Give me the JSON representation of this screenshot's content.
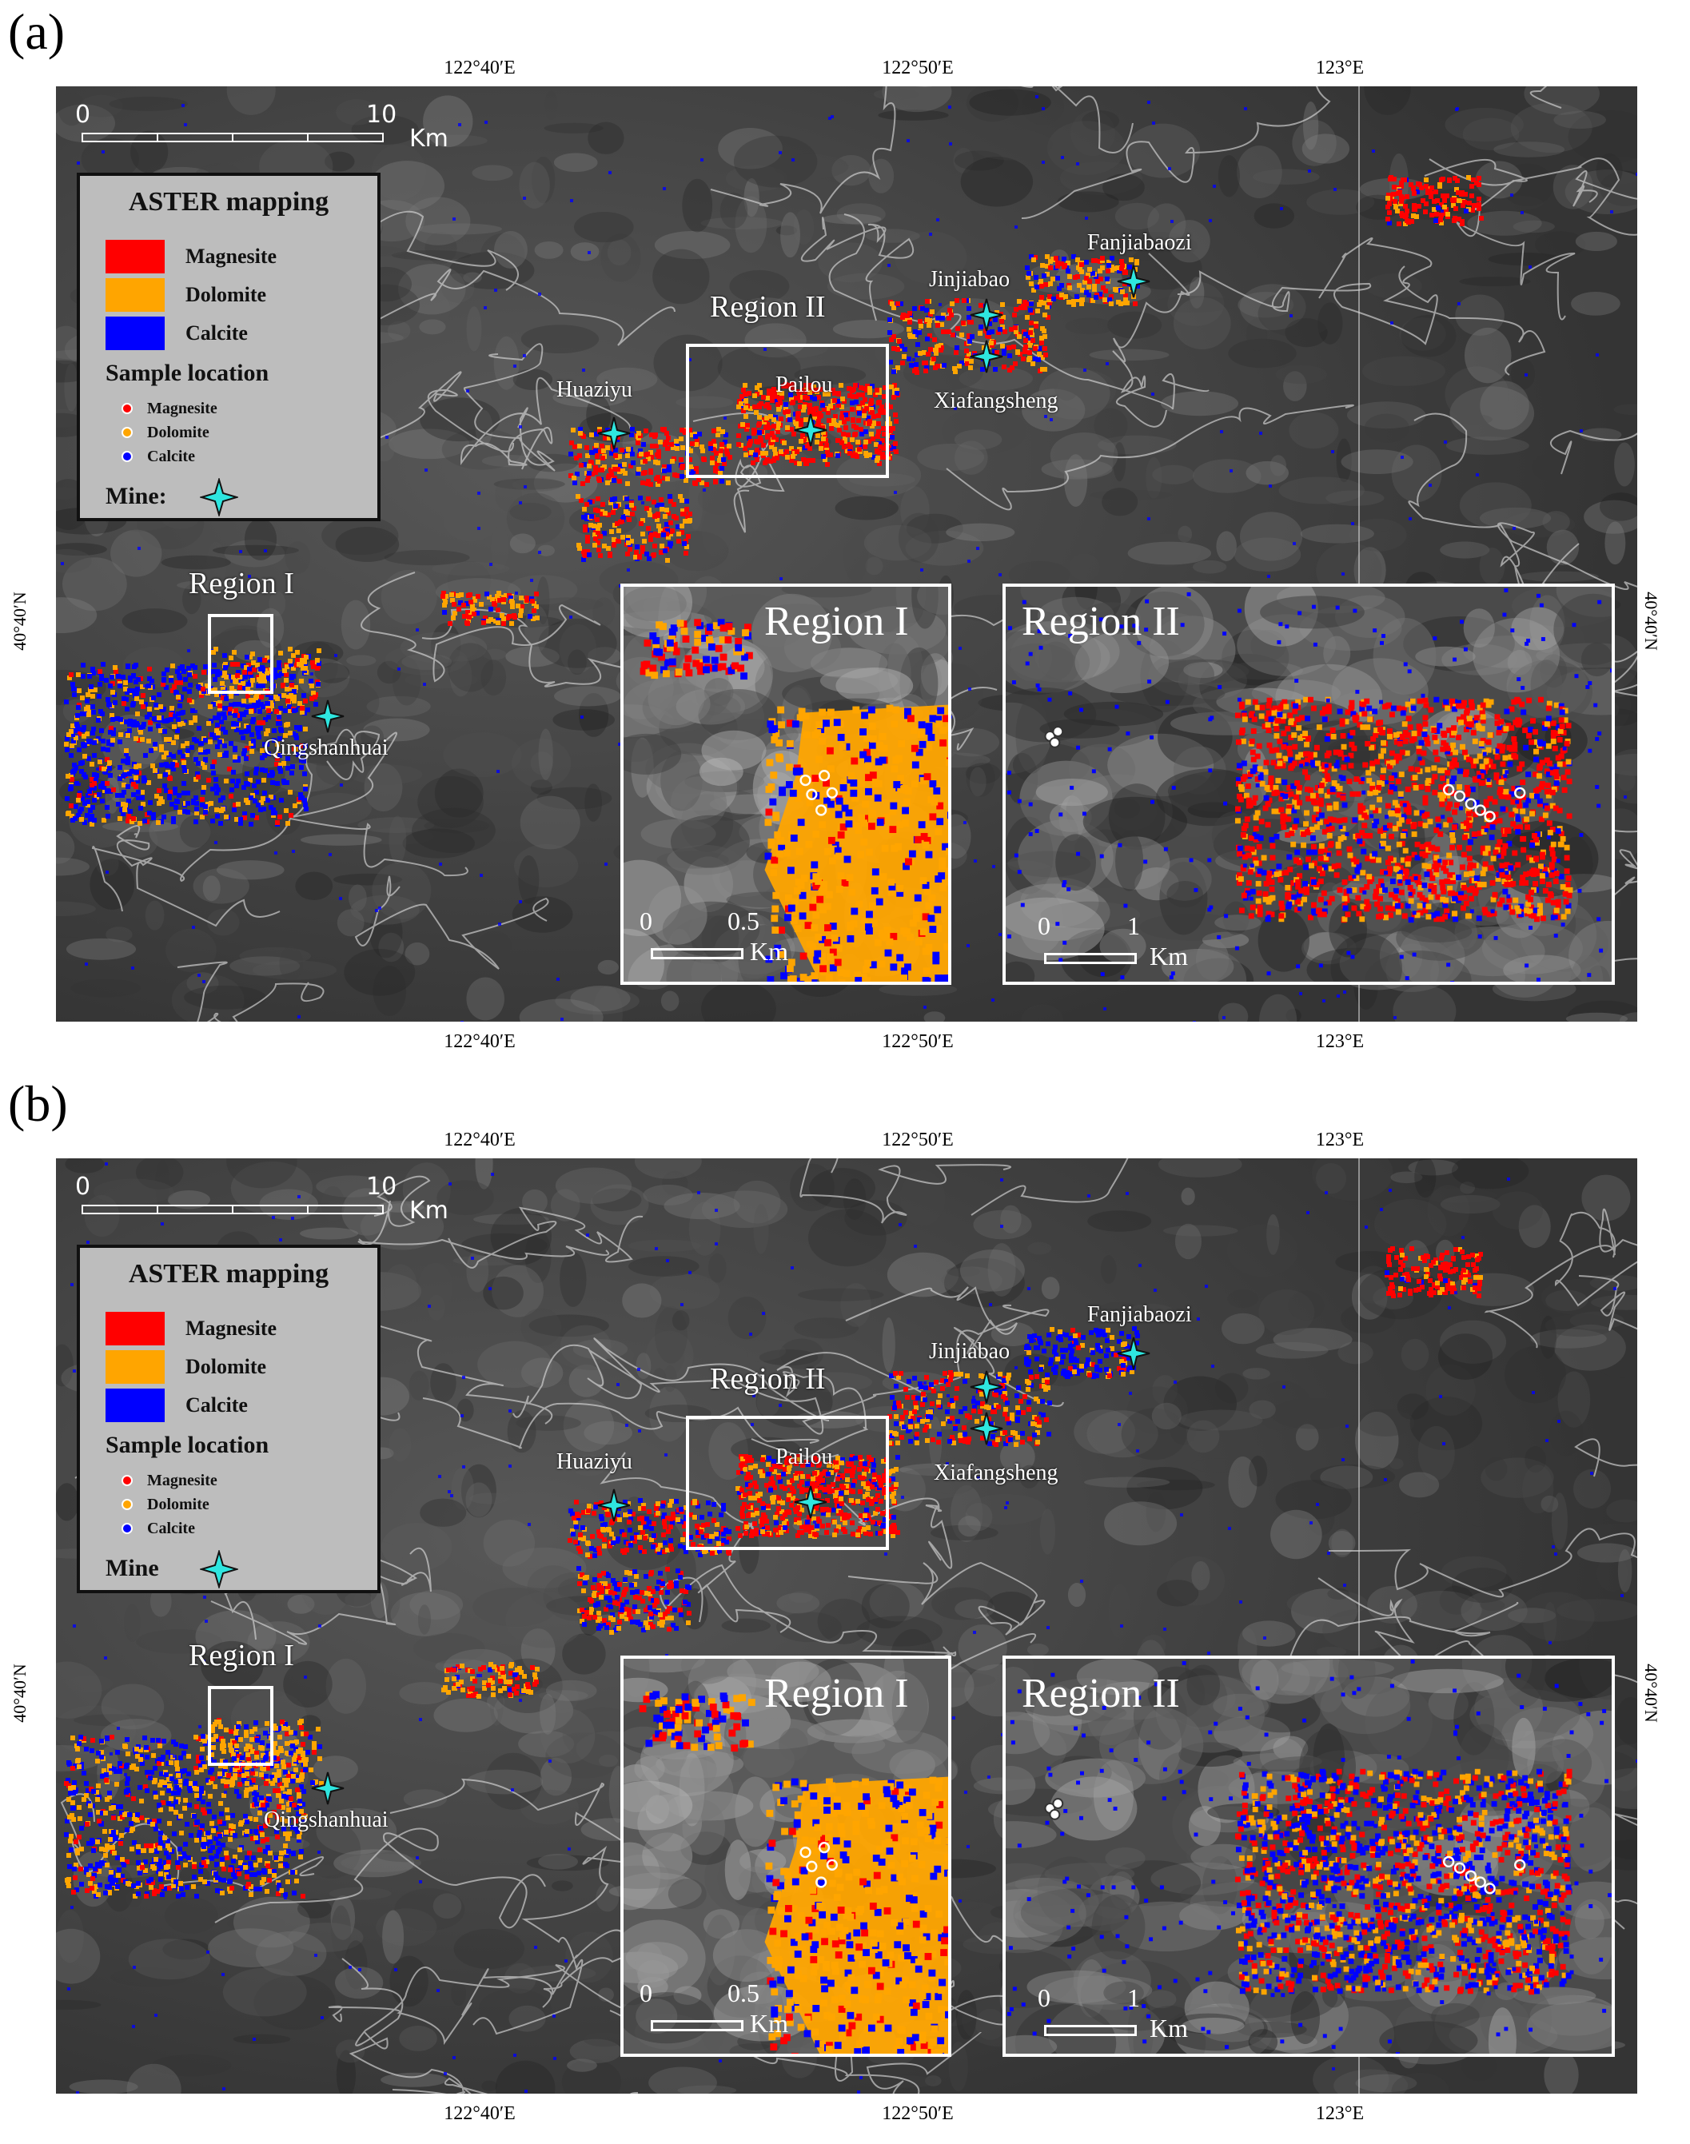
{
  "panels": [
    {
      "label": "(a)",
      "lon_ticks": [
        "122°40′E",
        "122°50′E",
        "123°E"
      ],
      "lat_tick": "40°40′N",
      "scalebar": {
        "start": "0",
        "end": "10",
        "unit": "Km"
      },
      "legend": {
        "title": "ASTER mapping",
        "classes": [
          {
            "name": "Magnesite",
            "color": "#ff0000"
          },
          {
            "name": "Dolomite",
            "color": "#ffa500"
          },
          {
            "name": "Calcite",
            "color": "#0000ff"
          }
        ],
        "sample_title": "Sample location",
        "samples": [
          {
            "name": "Magnesite",
            "color": "#ff0000"
          },
          {
            "name": "Dolomite",
            "color": "#ffa500"
          },
          {
            "name": "Calcite",
            "color": "#0000ff"
          }
        ],
        "mine_label": "Mine:"
      },
      "places": {
        "fanjiabaozi": "Fanjiabaozi",
        "jinjiabao": "Jinjiabao",
        "xiafangsheng": "Xiafangsheng",
        "huaziyu": "Huaziyu",
        "pailou": "Pailou",
        "qingshanhuai": "Qingshanhuai"
      },
      "regions": {
        "region1": "Region I",
        "region2": "Region II"
      },
      "inset1": {
        "title": "Region I",
        "scale_start": "0",
        "scale_end": "0.5",
        "unit": "Km"
      },
      "inset2": {
        "title": "Region II",
        "scale_start": "0",
        "scale_end": "1",
        "unit": "Km"
      }
    },
    {
      "label": "(b)",
      "lon_ticks": [
        "122°40′E",
        "122°50′E",
        "123°E"
      ],
      "lat_tick": "40°40′N",
      "scalebar": {
        "start": "0",
        "end": "10",
        "unit": "Km"
      },
      "legend": {
        "title": "ASTER mapping",
        "classes": [
          {
            "name": "Magnesite",
            "color": "#ff0000"
          },
          {
            "name": "Dolomite",
            "color": "#ffa500"
          },
          {
            "name": "Calcite",
            "color": "#0000ff"
          }
        ],
        "sample_title": "Sample location",
        "samples": [
          {
            "name": "Magnesite",
            "color": "#ff0000"
          },
          {
            "name": "Dolomite",
            "color": "#ffa500"
          },
          {
            "name": "Calcite",
            "color": "#0000ff"
          }
        ],
        "mine_label": "Mine"
      },
      "places": {
        "fanjiabaozi": "Fanjiabaozi",
        "jinjiabao": "Jinjiabao",
        "xiafangsheng": "Xiafangsheng",
        "huaziyu": "Huaziyu",
        "pailou": "Pailou",
        "qingshanhuai": "Qingshanhuai"
      },
      "regions": {
        "region1": "Region I",
        "region2": "Region II"
      },
      "inset1": {
        "title": "Region I",
        "scale_start": "0",
        "scale_end": "0.5",
        "unit": "Km"
      },
      "inset2": {
        "title": "Region II",
        "scale_start": "0",
        "scale_end": "1",
        "unit": "Km"
      }
    }
  ]
}
